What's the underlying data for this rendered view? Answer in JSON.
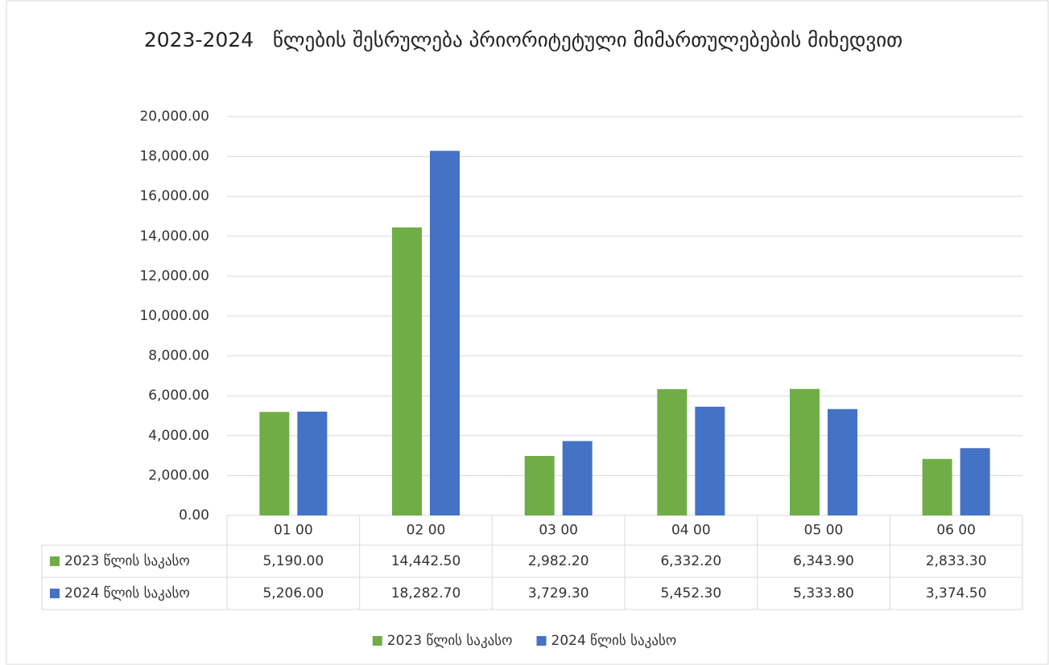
{
  "chart_data": {
    "type": "bar",
    "title": "2023-2024   წლების შესრულება პრიორიტეტული მიმართულებების მიხედვით",
    "categories": [
      "01 00",
      "02 00",
      "03 00",
      "04 00",
      "05 00",
      "06 00"
    ],
    "series": [
      {
        "name": "2023 წლის საკასო",
        "color": "#70ad47",
        "values": [
          5190.0,
          14442.5,
          2982.2,
          6332.2,
          6343.9,
          2833.3
        ],
        "value_labels": [
          "5,190.00",
          "14,442.50",
          "2,982.20",
          "6,332.20",
          "6,343.90",
          "2,833.30"
        ]
      },
      {
        "name": "2024 წლის საკასო",
        "color": "#4472c4",
        "values": [
          5206.0,
          18282.7,
          3729.3,
          5452.3,
          5333.8,
          3374.5
        ],
        "value_labels": [
          "5,206.00",
          "18,282.70",
          "3,729.30",
          "5,452.30",
          "5,333.80",
          "3,374.50"
        ]
      }
    ],
    "ylim": [
      0,
      20000
    ],
    "yticks": [
      {
        "value": 0,
        "label": "0.00"
      },
      {
        "value": 2000,
        "label": "2,000.00"
      },
      {
        "value": 4000,
        "label": "4,000.00"
      },
      {
        "value": 6000,
        "label": "6,000.00"
      },
      {
        "value": 8000,
        "label": "8,000.00"
      },
      {
        "value": 10000,
        "label": "10,000.00"
      },
      {
        "value": 12000,
        "label": "12,000.00"
      },
      {
        "value": 14000,
        "label": "14,000.00"
      },
      {
        "value": 16000,
        "label": "16,000.00"
      },
      {
        "value": 18000,
        "label": "18,000.00"
      },
      {
        "value": 20000,
        "label": "20,000.00"
      }
    ],
    "grid": true,
    "legend": "bottom"
  }
}
